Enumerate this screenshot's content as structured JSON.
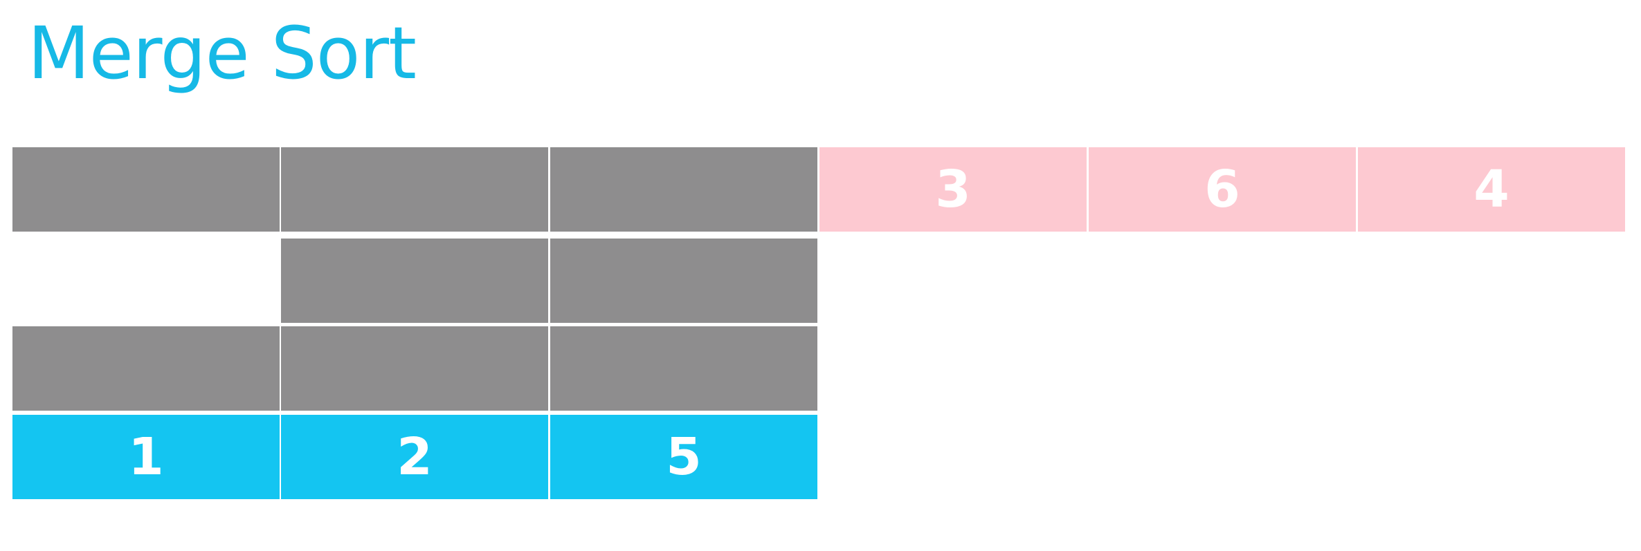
{
  "title": "Merge Sort",
  "colors": {
    "title": "#16b9e6",
    "placeholder_cell": "#8e8d8e",
    "right_half_cell": "#fdc9d1",
    "merged_cell": "#14c5f1",
    "cell_text": "#ffffff"
  },
  "top_row": {
    "right_half_values": [
      "3",
      "6",
      "4"
    ]
  },
  "bottom_row": {
    "merged_values": [
      "1",
      "2",
      "5"
    ]
  }
}
